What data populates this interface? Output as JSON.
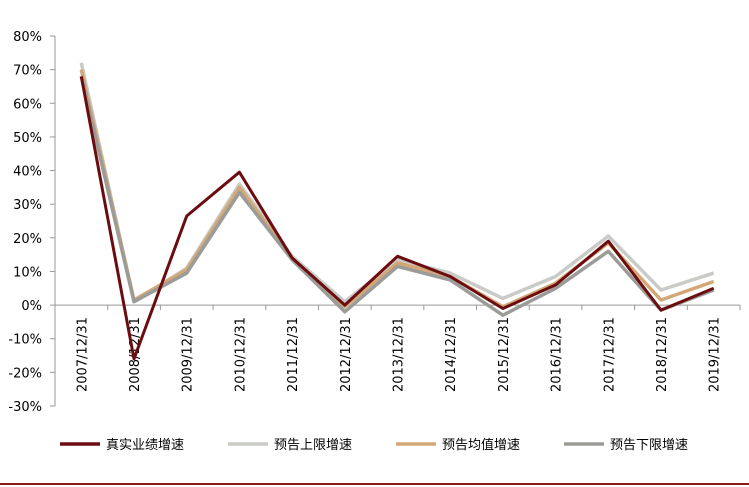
{
  "chart_data": {
    "type": "line",
    "categories": [
      "2007/12/31",
      "2008/12/31",
      "2009/12/31",
      "2010/12/31",
      "2011/12/31",
      "2012/12/31",
      "2013/12/31",
      "2014/12/31",
      "2015/12/31",
      "2016/12/31",
      "2017/12/31",
      "2018/12/31",
      "2019/12/31"
    ],
    "y_ticks": [
      "80%",
      "70%",
      "60%",
      "50%",
      "40%",
      "30%",
      "20%",
      "10%",
      "0%",
      "-10%",
      "-20%",
      "-30%"
    ],
    "ylim": [
      -30,
      80
    ],
    "series": [
      {
        "name": "真实业绩增速",
        "color": "#6b0d10",
        "width": 3,
        "values": [
          68,
          -16,
          26.5,
          39.5,
          14,
          0,
          14.5,
          8.5,
          -1,
          6,
          19,
          -1.5,
          5
        ]
      },
      {
        "name": "预告上限增速",
        "color": "#c9cbc7",
        "width": 3.5,
        "values": [
          72,
          1,
          11,
          36,
          14.5,
          1,
          13.5,
          9.5,
          2,
          8.5,
          20.5,
          4.5,
          9.5
        ]
      },
      {
        "name": "预告均值增速",
        "color": "#d4a777",
        "width": 3.5,
        "values": [
          70,
          1.5,
          10.5,
          35,
          14,
          -0.5,
          12.5,
          8.5,
          -0.5,
          6.5,
          18.5,
          1.5,
          7
        ]
      },
      {
        "name": "预告下限增速",
        "color": "#9b9b98",
        "width": 3.5,
        "values": [
          68,
          1,
          9.5,
          33.5,
          13.5,
          -2,
          11.5,
          7.5,
          -3,
          5,
          16,
          -1.5,
          4.5
        ]
      }
    ],
    "legend_position": "bottom",
    "grid": false
  }
}
